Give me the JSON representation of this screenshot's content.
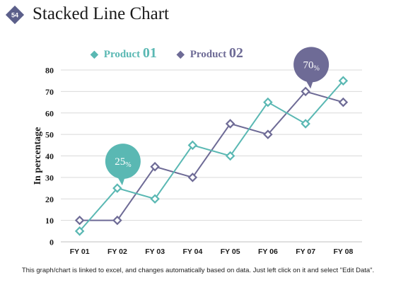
{
  "slide": {
    "number": "54",
    "title": "Stacked Line Chart"
  },
  "colors": {
    "series1": "#5ab8b3",
    "series2": "#6e6b96",
    "grid": "#d9d9d9",
    "badge": "#5b5f8a"
  },
  "legend": [
    {
      "name": "Product ",
      "num": "01",
      "marker": "◆"
    },
    {
      "name": "Product ",
      "num": "02",
      "marker": "◆"
    }
  ],
  "chart_data": {
    "type": "line",
    "ylabel": "In percentage",
    "ylim": [
      0,
      80
    ],
    "yticks": [
      0,
      10,
      20,
      30,
      40,
      50,
      60,
      70,
      80
    ],
    "grid": true,
    "legend_position": "top",
    "categories": [
      "FY 01",
      "FY 02",
      "FY 03",
      "FY 04",
      "FY 05",
      "FY 06",
      "FY 07",
      "FY 08"
    ],
    "series": [
      {
        "name": "Product 01",
        "values": [
          5,
          25,
          20,
          45,
          40,
          65,
          55,
          75
        ]
      },
      {
        "name": "Product 02",
        "values": [
          10,
          10,
          35,
          30,
          55,
          50,
          70,
          65
        ]
      }
    ],
    "annotations": [
      {
        "series": 0,
        "index": 1,
        "value": "25",
        "unit": "%"
      },
      {
        "series": 1,
        "index": 6,
        "value": "70",
        "unit": "%"
      }
    ]
  },
  "footer": "This graph/chart is linked to excel, and changes automatically based on data. Just left click on it and select \"Edit Data\"."
}
